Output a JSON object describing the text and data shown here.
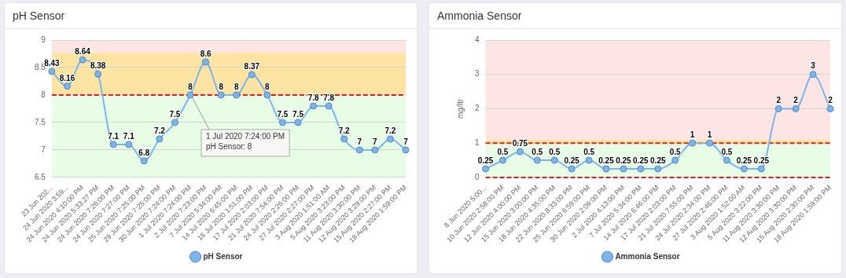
{
  "chart_data": [
    {
      "type": "line",
      "title": "pH Sensor",
      "categories": [
        "23 Jun 202...",
        "24 Jun 2020 3:59...",
        "24 Jun 2020 4:10:00 PM",
        "24 Jun 2020 5:33:27 PM",
        "24 Jun 2020 7:26:00 PM",
        "24 Jun 2020 7:27:00 PM",
        "25 Jun 2020 7:25:00 PM",
        "29 Jun 2020 7:25:00 PM",
        "30 Jun 2020 7:24:00 PM",
        "1 Jul 2020 7:24:00 PM",
        "2 Jul 2020 7:23:00 PM",
        "7 Jul 2020 5:34:00 PM",
        "14 Jul 2020 6:45:00 PM",
        "16 Jul 2020 1:51:00 PM",
        "17 Jul 2020 2:03:00 PM",
        "21 Jul 2020 7:54:00 PM",
        "24 Jul 2020 2:26:00 PM",
        "27 Jul 2020 2:27:00 PM",
        "3 Aug 2020 1:51:00 AM",
        "5 Aug 2020 3:23:00 PM",
        "11 Aug 2020 3:30:00 PM",
        "12 Aug 2020 3:29:00 PM",
        "15 Aug 2020 2:27:00 PM",
        "18 Aug 2020 1:59:00 PM"
      ],
      "series": [
        {
          "name": "pH Sensor",
          "color": "#7cb5ec",
          "values": [
            8.43,
            8.16,
            8.64,
            8.38,
            7.1,
            7.1,
            6.8,
            7.2,
            7.5,
            8,
            8.6,
            8,
            8,
            8.37,
            8,
            7.5,
            7.5,
            7.8,
            7.8,
            7.2,
            7,
            7,
            7.2,
            7
          ]
        }
      ],
      "ylim": [
        6.5,
        9
      ],
      "yticks": [
        6.5,
        7,
        7.5,
        8,
        8.5,
        9
      ],
      "grid": "y",
      "legend": "bottom",
      "marker": "circle",
      "data_labels": true,
      "bands": [
        {
          "axis": "y",
          "from": 6.5,
          "to": 8,
          "color": "#e8fde6"
        },
        {
          "axis": "y",
          "from": 8,
          "to": 8.78,
          "color": "#fee4a3"
        },
        {
          "axis": "y",
          "from": 8.78,
          "to": 9,
          "color": "#fde5e5"
        }
      ],
      "ref_lines": [
        {
          "axis": "y",
          "value": 8,
          "color": "#e02020",
          "line_style": "dashed"
        }
      ],
      "annotations": [
        {
          "text": "1 Jul 2020 7:24:00 PM\npH Sensor: 8",
          "x": "1 Jul 2020 7:24:00 PM",
          "y": 8
        }
      ]
    },
    {
      "type": "line",
      "title": "Ammonia Sensor",
      "ylabel": "mg/ltr",
      "categories": [
        "8 Jun 2020 5:00...",
        "10 Jun 2020 2:58:00 PM",
        "12 Jun 2020 4:00:00 PM",
        "15 Jun 2020 3:00:00 PM",
        "18 Jun 2020 4:35:00 PM",
        "22 Jun 2020 8:33:00 PM",
        "25 Jun 2020 6:59:00 PM",
        "30 Jun 2020 2:09:00 PM",
        "2 Jul 2020 4:13:00 PM",
        "7 Jul 2020 5:34:00 PM",
        "14 Jul 2020 6:46:00 PM",
        "17 Jul 2020 2:03:00 PM",
        "21 Jul 2020 7:55:00 PM",
        "24 Jul 2020 2:34:00 PM",
        "27 Jul 2020 2:46:00 PM",
        "3 Aug 2020 1:52:00 AM",
        "5 Aug 2020 3:22:00 PM",
        "11 Aug 2020 3:30:00 PM",
        "12 Aug 2020 3:30:00 PM",
        "15 Aug 2020 2:30:00 PM",
        "18 Aug 2020 1:59:00 PM"
      ],
      "series": [
        {
          "name": "Ammonia Sensor",
          "color": "#7cb5ec",
          "values": [
            0.25,
            0.5,
            0.75,
            0.5,
            0.5,
            0.25,
            0.5,
            0.25,
            0.25,
            0.25,
            0.25,
            0.5,
            1,
            1,
            0.5,
            0.25,
            0.25,
            2,
            2,
            3,
            2
          ]
        }
      ],
      "ylim": [
        0,
        4
      ],
      "yticks": [
        0,
        1,
        2,
        3,
        4
      ],
      "grid": "y",
      "legend": "bottom",
      "marker": "circle",
      "data_labels": true,
      "bands": [
        {
          "axis": "y",
          "from": 0,
          "to": 1,
          "color": "#e8fde6"
        },
        {
          "axis": "y",
          "from": 1,
          "to": 1.1,
          "color": "#fee4a3"
        },
        {
          "axis": "y",
          "from": 1.1,
          "to": 4,
          "color": "#fde5e5"
        }
      ],
      "ref_lines": [
        {
          "axis": "y",
          "value": 0,
          "color": "#e02020",
          "line_style": "dashed"
        },
        {
          "axis": "y",
          "value": 1,
          "color": "#e02020",
          "line_style": "dashed"
        }
      ]
    }
  ]
}
